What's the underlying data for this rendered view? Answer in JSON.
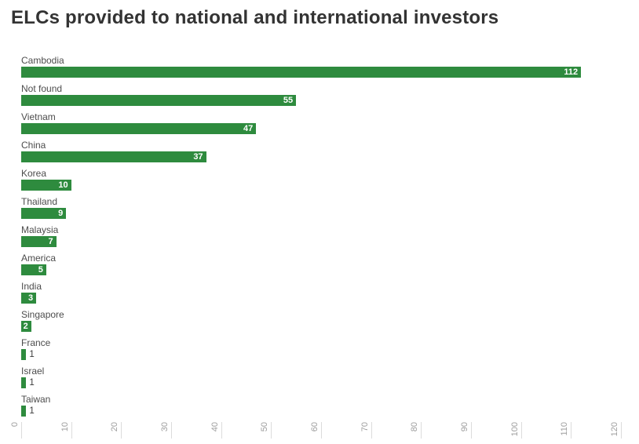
{
  "title": "ELCs provided to national and international investors",
  "chart_data": {
    "type": "bar",
    "orientation": "horizontal",
    "title": "ELCs provided to national and international investors",
    "categories": [
      "Cambodia",
      "Not found",
      "Vietnam",
      "China",
      "Korea",
      "Thailand",
      "Malaysia",
      "America",
      "India",
      "Singapore",
      "France",
      "Israel",
      "Taiwan"
    ],
    "values": [
      112,
      55,
      47,
      37,
      10,
      9,
      7,
      5,
      3,
      2,
      1,
      1,
      1
    ],
    "xlabel": "",
    "ylabel": "",
    "xlim": [
      0,
      120
    ],
    "x_ticks": [
      0,
      10,
      20,
      30,
      40,
      50,
      60,
      70,
      80,
      90,
      100,
      110,
      120
    ],
    "tick_label_rotation": -90,
    "grid": "off",
    "legend": "none",
    "bar_color": "#2e8b3e",
    "value_label_inside_color": "#ffffff",
    "value_label_outside_color": "#3a3a3a"
  },
  "colors": {
    "background": "#ffffff",
    "title_text": "#333333",
    "category_text": "#4d4d4d",
    "tick_text": "#9e9e9e",
    "tick_line": "#dcdcdc"
  }
}
